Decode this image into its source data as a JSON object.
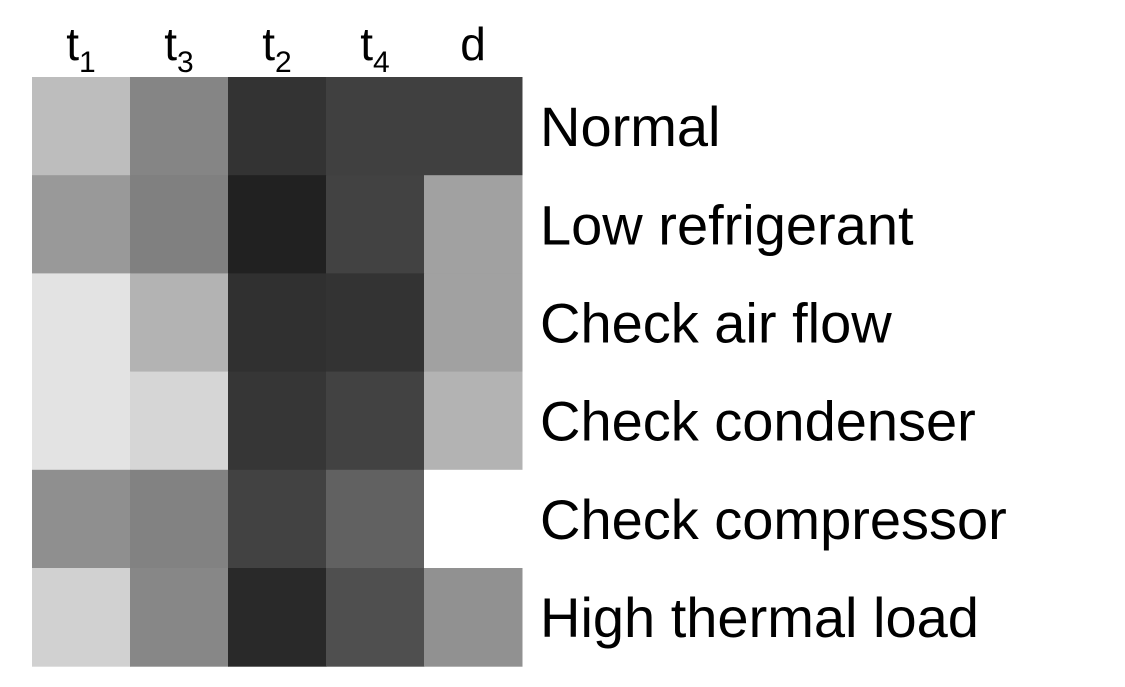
{
  "chart_data": {
    "type": "heatmap",
    "colormap": "grayscale",
    "columns": [
      {
        "base": "t",
        "sub": "1"
      },
      {
        "base": "t",
        "sub": "3"
      },
      {
        "base": "t",
        "sub": "2"
      },
      {
        "base": "t",
        "sub": "4"
      },
      {
        "base": "d",
        "sub": ""
      }
    ],
    "rows": [
      "Normal",
      "Low refrigerant",
      "Check air flow",
      "Check condenser",
      "Check compressor",
      "High thermal load"
    ],
    "values": [
      [
        0.74,
        0.52,
        0.2,
        0.25,
        0.25
      ],
      [
        0.6,
        0.5,
        0.13,
        0.26,
        0.63
      ],
      [
        0.89,
        0.7,
        0.19,
        0.2,
        0.63
      ],
      [
        0.89,
        0.84,
        0.21,
        0.26,
        0.7
      ],
      [
        0.56,
        0.51,
        0.26,
        0.38,
        1.0
      ],
      [
        0.82,
        0.53,
        0.16,
        0.31,
        0.57
      ]
    ]
  }
}
